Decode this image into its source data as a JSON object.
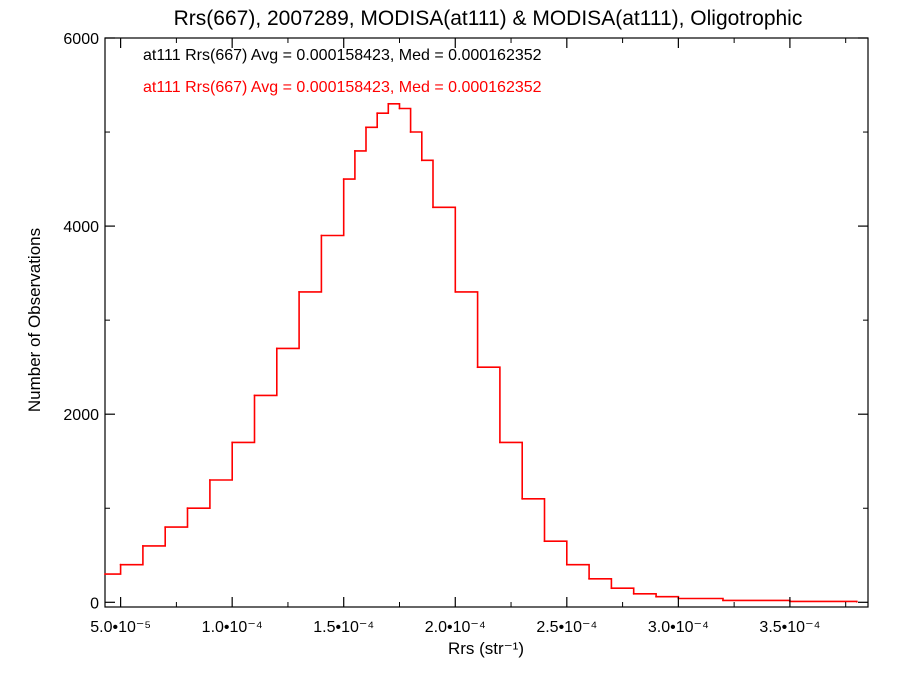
{
  "chart_data": {
    "type": "bar",
    "title": "Rrs(667), 2007289, MODISA(at111) & MODISA(at111), Oligotrophic",
    "xlabel": "Rrs (str⁻¹)",
    "ylabel": "Number of Observations",
    "xlim": [
      4.3e-05,
      0.000385
    ],
    "ylim": [
      -50,
      6000
    ],
    "x_ticks": [
      {
        "value": 5e-05,
        "label": "5.0•10⁻⁵"
      },
      {
        "value": 0.0001,
        "label": "1.0•10⁻⁴"
      },
      {
        "value": 0.00015,
        "label": "1.5•10⁻⁴"
      },
      {
        "value": 0.0002,
        "label": "2.0•10⁻⁴"
      },
      {
        "value": 0.00025,
        "label": "2.5•10⁻⁴"
      },
      {
        "value": 0.0003,
        "label": "3.0•10⁻⁴"
      },
      {
        "value": 0.00035,
        "label": "3.5•10⁻⁴"
      }
    ],
    "y_ticks": [
      {
        "value": 0,
        "label": "0"
      },
      {
        "value": 2000,
        "label": "2000"
      },
      {
        "value": 4000,
        "label": "4000"
      },
      {
        "value": 6000,
        "label": "6000"
      }
    ],
    "grid": false,
    "annotations": [
      {
        "text": "at111 Rrs(667) Avg = 0.000158423, Med = 0.000162352",
        "color": "#000000"
      },
      {
        "text": "at111 Rrs(667) Avg = 0.000158423, Med = 0.000162352",
        "color": "#ff0000"
      }
    ],
    "series": [
      {
        "color": "#ff0000",
        "x": [
          4.3e-05,
          5e-05,
          6e-05,
          7e-05,
          8e-05,
          9e-05,
          0.0001,
          0.00011,
          0.00012,
          0.00013,
          0.00014,
          0.00015,
          0.000155,
          0.00016,
          0.000165,
          0.00017,
          0.000175,
          0.00018,
          0.000185,
          0.00019,
          0.0002,
          0.00021,
          0.00022,
          0.00023,
          0.00024,
          0.00025,
          0.00026,
          0.00027,
          0.00028,
          0.00029,
          0.0003,
          0.00032,
          0.00035,
          0.00038
        ],
        "y": [
          300,
          400,
          600,
          800,
          1000,
          1300,
          1700,
          2200,
          2700,
          3300,
          3900,
          4500,
          4800,
          5050,
          5200,
          5300,
          5250,
          5000,
          4700,
          4200,
          3300,
          2500,
          1700,
          1100,
          650,
          400,
          250,
          150,
          90,
          60,
          40,
          20,
          10,
          5
        ]
      }
    ]
  }
}
